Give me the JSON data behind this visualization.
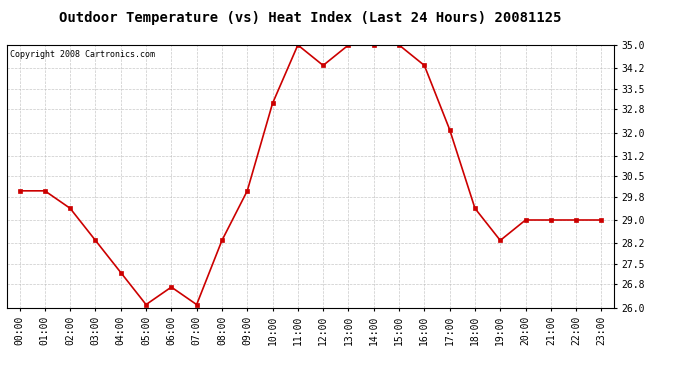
{
  "title": "Outdoor Temperature (vs) Heat Index (Last 24 Hours) 20081125",
  "copyright": "Copyright 2008 Cartronics.com",
  "x_labels": [
    "00:00",
    "01:00",
    "02:00",
    "03:00",
    "04:00",
    "05:00",
    "06:00",
    "07:00",
    "08:00",
    "09:00",
    "10:00",
    "11:00",
    "12:00",
    "13:00",
    "14:00",
    "15:00",
    "16:00",
    "17:00",
    "18:00",
    "19:00",
    "20:00",
    "21:00",
    "22:00",
    "23:00"
  ],
  "y_values": [
    30.0,
    30.0,
    29.4,
    28.3,
    27.2,
    26.1,
    26.7,
    26.1,
    28.3,
    30.0,
    33.0,
    35.0,
    34.3,
    35.0,
    35.0,
    35.0,
    34.3,
    32.1,
    29.4,
    28.3,
    29.0,
    29.0,
    29.0,
    29.0
  ],
  "line_color": "#cc0000",
  "marker_color": "#cc0000",
  "bg_color": "#ffffff",
  "grid_color": "#bbbbbb",
  "ylim_min": 26.0,
  "ylim_max": 35.0,
  "yticks": [
    26.0,
    26.8,
    27.5,
    28.2,
    29.0,
    29.8,
    30.5,
    31.2,
    32.0,
    32.8,
    33.5,
    34.2,
    35.0
  ],
  "title_fontsize": 10,
  "copyright_fontsize": 6,
  "tick_fontsize": 7
}
